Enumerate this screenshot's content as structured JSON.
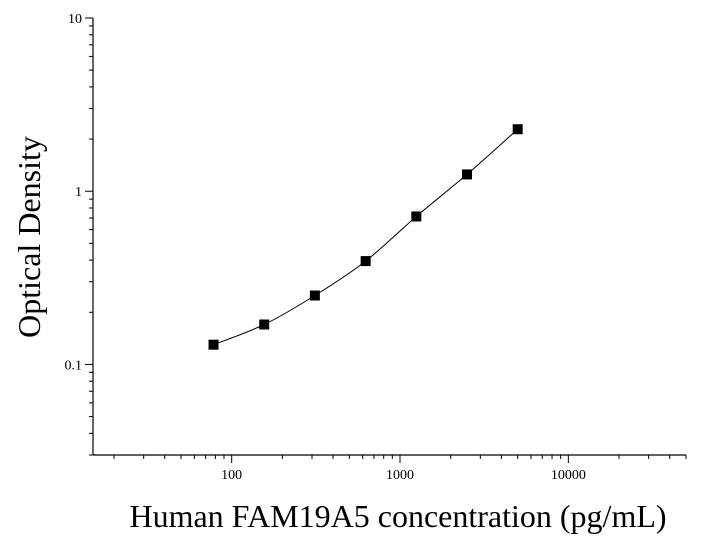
{
  "chart_data": {
    "type": "scatter",
    "title": "",
    "xlabel": "Human FAM19A5 concentration (pg/mL)",
    "ylabel": "Optical Density",
    "x_scale": "log",
    "y_scale": "log",
    "xlim": [
      15,
      50000
    ],
    "ylim": [
      0.03,
      10
    ],
    "x_ticks": [
      100,
      1000,
      10000
    ],
    "x_tick_labels": [
      "100",
      "1000",
      "10000"
    ],
    "y_ticks": [
      0.1,
      1,
      10
    ],
    "y_tick_labels": [
      "0.1",
      "1",
      "10"
    ],
    "grid": false,
    "legend": "none",
    "series": [
      {
        "x": [
          78,
          156,
          312,
          625,
          1250,
          2500,
          5000
        ],
        "y": [
          0.13,
          0.17,
          0.25,
          0.395,
          0.715,
          1.25,
          2.28
        ],
        "marker": "square",
        "fit_curve": true,
        "color": "#000000"
      }
    ]
  }
}
